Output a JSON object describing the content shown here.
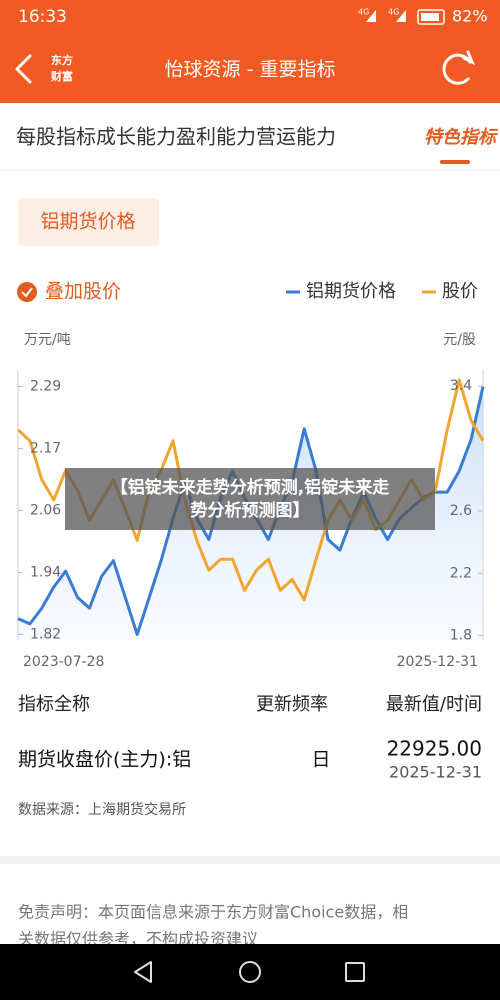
{
  "status_bar": {
    "time": "16:33",
    "network_1": "4G",
    "network_2": "4G",
    "battery": "82%"
  },
  "header": {
    "logo_lines": [
      "东方",
      "财富"
    ],
    "title": "怡球资源 - 重要指标"
  },
  "tabs": {
    "items": [
      "每股指标",
      "成长能力",
      "盈利能力",
      "营运能力"
    ],
    "active": "特色指标"
  },
  "filter_button": "铝期货价格",
  "overlay_toggle": "叠加股价",
  "chart_data": {
    "type": "line",
    "y_unit_label": "万元/吨",
    "y2_unit_label": "元/股",
    "categories": [
      "2023-07-28",
      null,
      null,
      null,
      null,
      null,
      null,
      null,
      null,
      null,
      null,
      null,
      null,
      null,
      null,
      null,
      null,
      null,
      null,
      null,
      null,
      null,
      null,
      null,
      null,
      null,
      null,
      null,
      null,
      null,
      null,
      null,
      null,
      null,
      null,
      null,
      null,
      null,
      null,
      "2025-12-31"
    ],
    "series": [
      {
        "name": "铝期货价格",
        "color": "#3a7bd5",
        "axis": "y",
        "area": true,
        "values": [
          1.85,
          1.84,
          1.87,
          1.91,
          1.94,
          1.89,
          1.87,
          1.93,
          1.96,
          1.89,
          1.82,
          1.89,
          1.96,
          2.04,
          2.11,
          2.04,
          2.0,
          2.08,
          2.13,
          2.08,
          2.04,
          2.0,
          2.06,
          2.11,
          2.21,
          2.13,
          2.0,
          1.98,
          2.04,
          2.09,
          2.04,
          2.0,
          2.04,
          2.06,
          2.08,
          2.09,
          2.09,
          2.13,
          2.19,
          2.29
        ]
      },
      {
        "name": "股价",
        "color": "#f0a531",
        "axis": "y2",
        "values": [
          3.12,
          3.05,
          2.8,
          2.67,
          2.86,
          2.73,
          2.54,
          2.67,
          2.8,
          2.61,
          2.41,
          2.73,
          2.86,
          3.05,
          2.67,
          2.41,
          2.22,
          2.29,
          2.29,
          2.09,
          2.22,
          2.29,
          2.09,
          2.16,
          2.03,
          2.29,
          2.54,
          2.67,
          2.54,
          2.67,
          2.48,
          2.54,
          2.67,
          2.8,
          2.67,
          2.73,
          3.12,
          3.44,
          3.18,
          3.05
        ]
      }
    ],
    "ylim": [
      1.8,
      2.35
    ],
    "yticks": [
      1.82,
      {
        "value": 1.9375,
        "label": "1.94"
      },
      {
        "value": 2.055,
        "label": "2.06"
      },
      {
        "value": 2.1725,
        "label": "2.17"
      },
      2.29
    ],
    "y2lim": [
      1.74,
      3.6
    ],
    "y2ticks": [
      1.8,
      2.2,
      2.6,
      3.4
    ],
    "grid": false
  },
  "overlay_caption": [
    "【铝锭未来走势分析预测,铝锭未来走",
    "势分析预测图】"
  ],
  "table": {
    "headers": [
      "指标全称",
      "更新频率",
      "最新值/时间"
    ],
    "rows": [
      [
        "期货收盘价(主力):铝",
        "日",
        "22925.00",
        "2025-12-31"
      ]
    ]
  },
  "source": "数据来源：上海期货交易所",
  "disclaimer": [
    "免责声明：本页面信息来源于东方财富Choice数据，相",
    "关数据仅供参考，不构成投资建议"
  ]
}
